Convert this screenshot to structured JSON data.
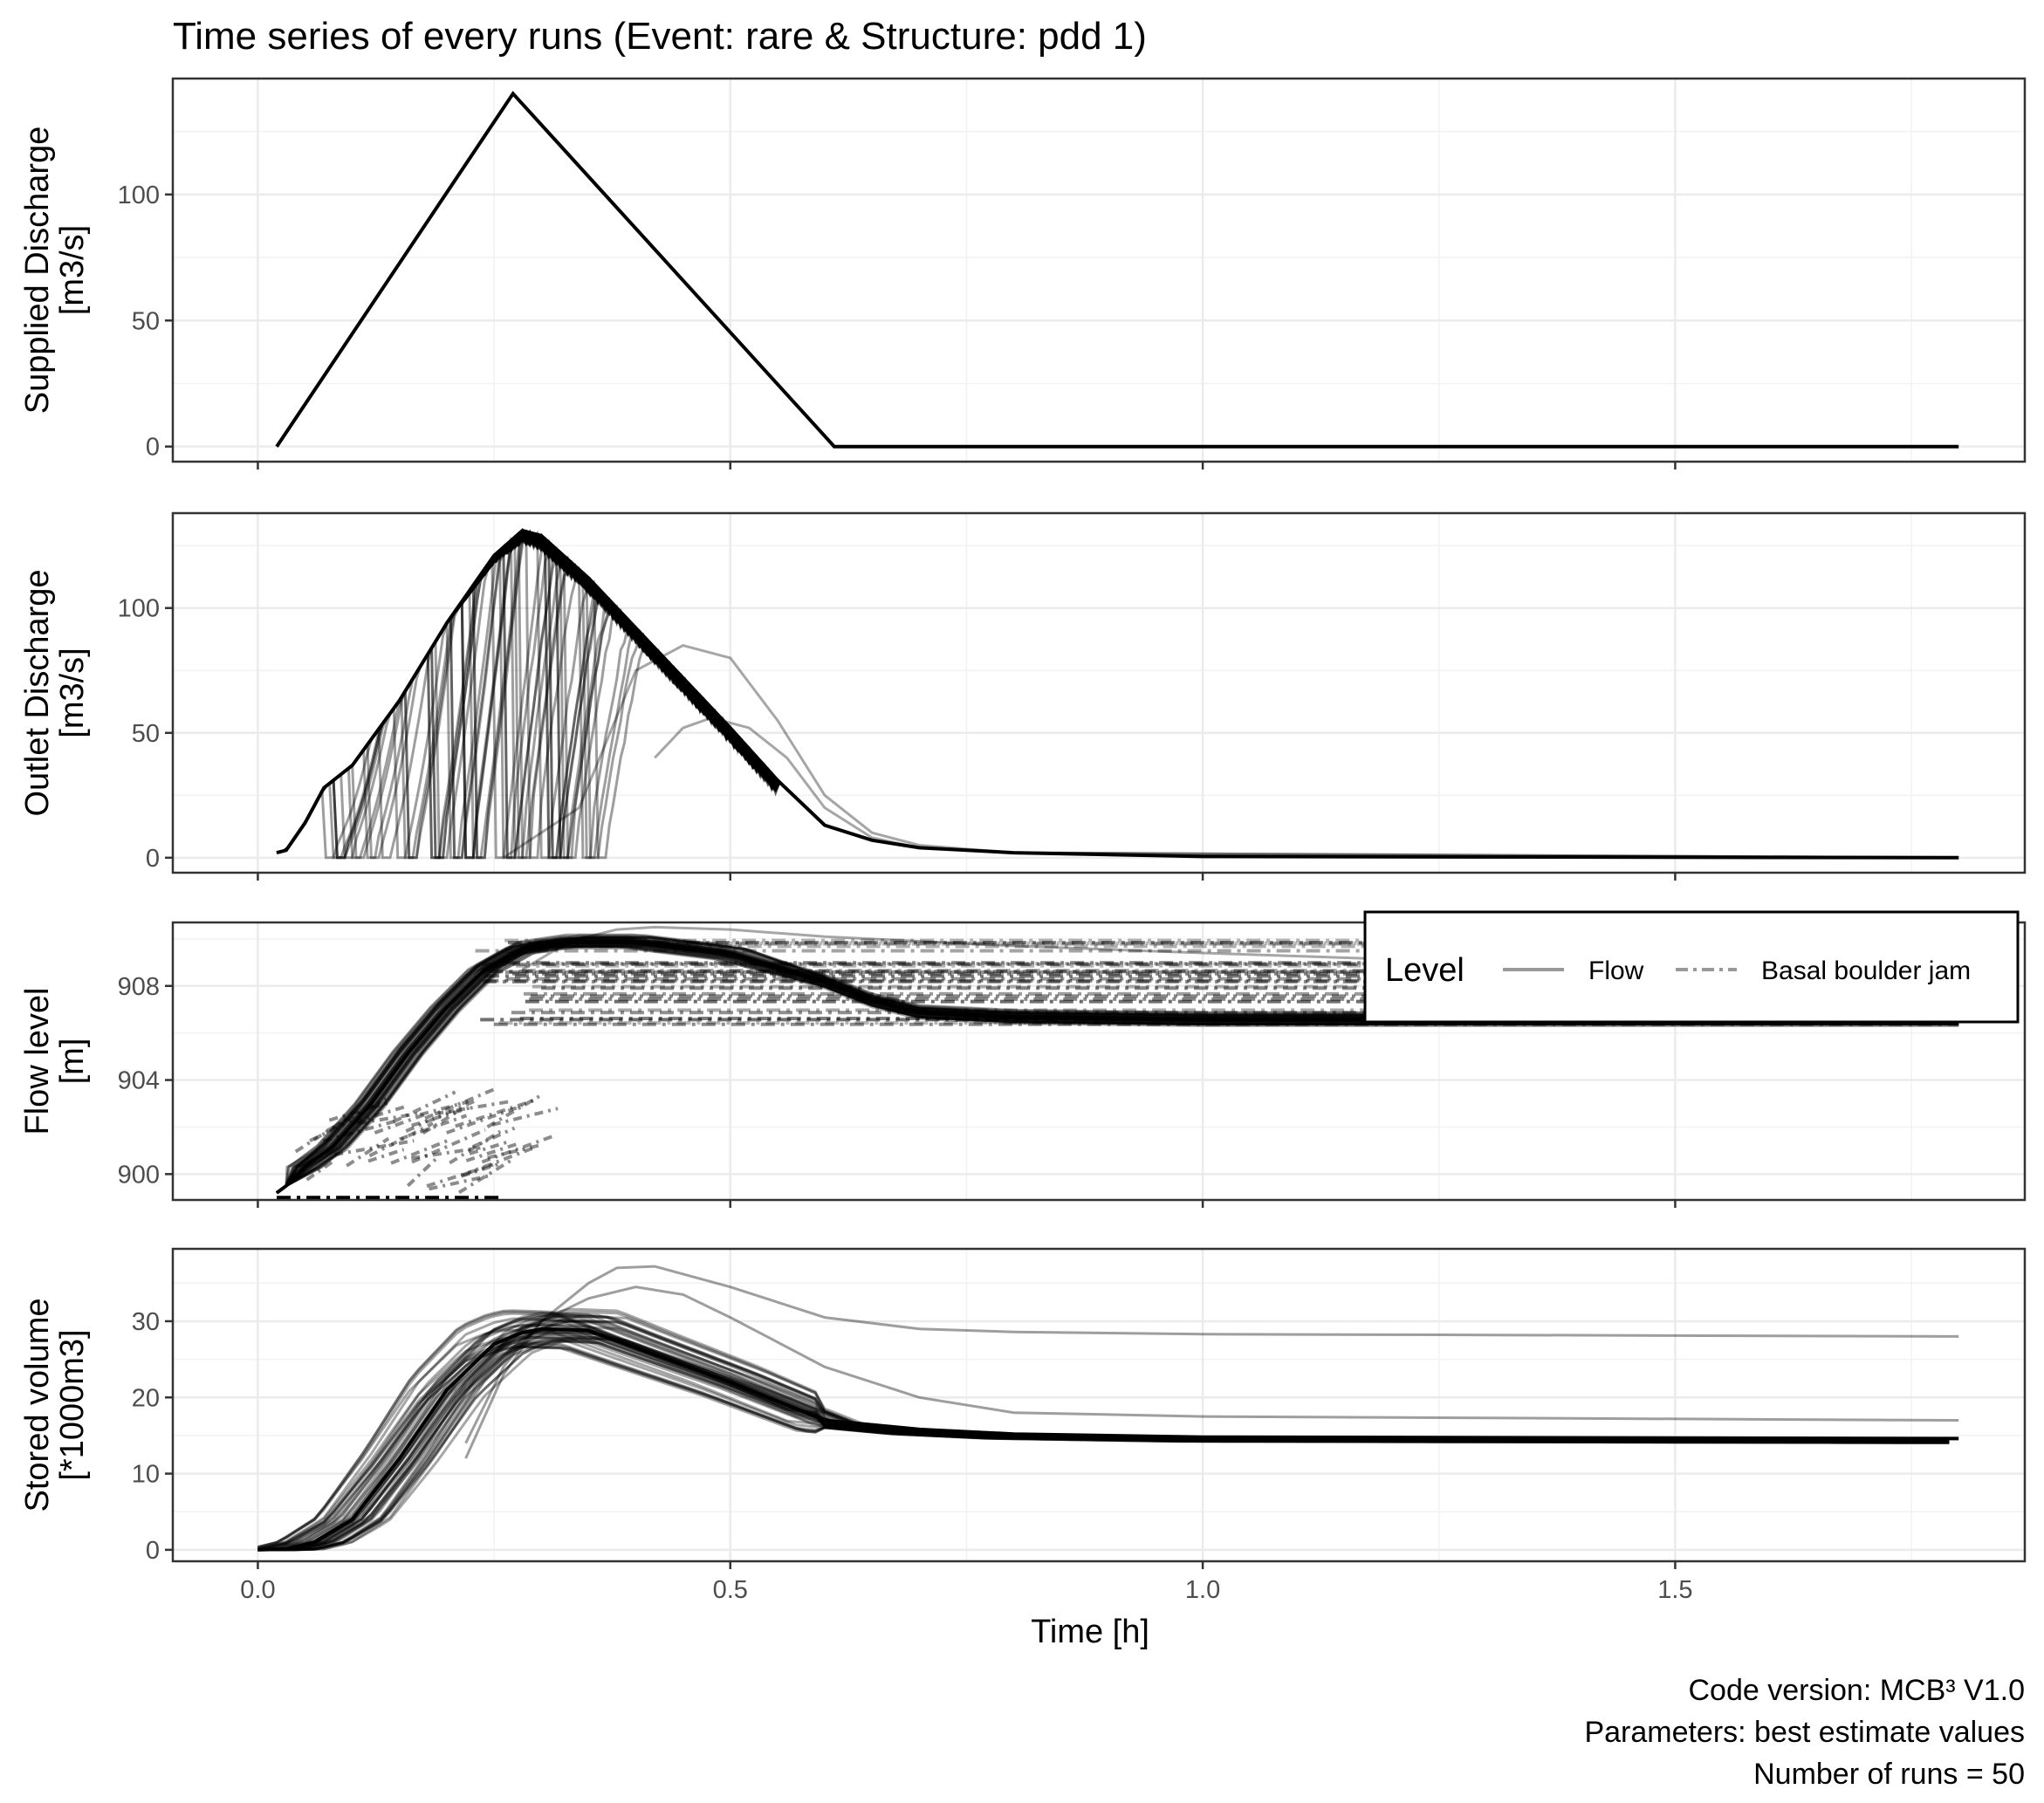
{
  "chart_data": {
    "type": "line",
    "title": "Time series of every runs (Event: rare & Structure: pdd 1)",
    "xlabel": "Time [h]",
    "xlim": [
      -0.09,
      1.87
    ],
    "x_ticks": [
      0.0,
      0.5,
      1.0,
      1.5
    ],
    "x_tick_labels": [
      "0.0",
      "0.5",
      "1.0",
      "1.5"
    ],
    "grid": true,
    "legend": {
      "title": "Level",
      "position": "top-right",
      "entries": [
        {
          "label": "Flow",
          "linetype": "solid"
        },
        {
          "label": "Basal boulder jam",
          "linetype": "dashdot"
        }
      ]
    },
    "caption_lines": [
      "Code version: MCB³ V1.0",
      "Parameters:  best estimate values",
      "Number of runs = 50"
    ],
    "n_runs": 50,
    "panels": [
      {
        "id": "supplied",
        "ylabel_lines": [
          "Supplied Discharge",
          "[m3/s]"
        ],
        "ylim": [
          -6,
          146
        ],
        "y_ticks": [
          0,
          50,
          100
        ],
        "y_tick_labels": [
          "0",
          "50",
          "100"
        ],
        "series": [
          {
            "x": [
              0.02,
              0.27,
              0.61,
              1.8
            ],
            "y": [
              0,
              140,
              0,
              0
            ],
            "linetype": "solid"
          }
        ]
      },
      {
        "id": "outlet",
        "ylabel_lines": [
          "Outlet Discharge",
          "[m3/s]"
        ],
        "ylim": [
          -6,
          138
        ],
        "y_ticks": [
          0,
          50,
          100
        ],
        "y_tick_labels": [
          "0",
          "50",
          "100"
        ],
        "envelope": {
          "x": [
            0.02,
            0.03,
            0.05,
            0.07,
            0.1,
            0.15,
            0.2,
            0.25,
            0.28,
            0.3,
            0.35,
            0.4,
            0.45,
            0.5,
            0.55,
            0.6,
            0.65,
            0.7,
            0.8,
            1.0,
            1.8
          ],
          "y": [
            2,
            3,
            14,
            28,
            37,
            63,
            94,
            121,
            131,
            129,
            112,
            92,
            72,
            52,
            31,
            13,
            7,
            4,
            2,
            0.5,
            0
          ]
        },
        "dip_runs_count": 50,
        "late_runs": [
          {
            "x": [
              0.26,
              0.34,
              0.4,
              0.45,
              0.5,
              0.55,
              0.6,
              0.65,
              0.7,
              0.8,
              1.8
            ],
            "y": [
              0,
              20,
              75,
              85,
              80,
              55,
              25,
              10,
              5,
              2,
              0
            ]
          },
          {
            "x": [
              0.42,
              0.45,
              0.48,
              0.52,
              0.56,
              0.6,
              0.65,
              0.7,
              0.8,
              1.8
            ],
            "y": [
              40,
              52,
              56,
              52,
              40,
              20,
              8,
              4,
              2,
              0
            ]
          }
        ]
      },
      {
        "id": "flowlevel",
        "ylabel_lines": [
          "Flow level",
          "[m]"
        ],
        "ylim": [
          898.9,
          910.7
        ],
        "y_ticks": [
          900,
          904,
          908
        ],
        "y_tick_labels": [
          "900",
          "904",
          "908"
        ],
        "flow_envelope": {
          "x": [
            0.02,
            0.03,
            0.05,
            0.08,
            0.12,
            0.16,
            0.2,
            0.24,
            0.28,
            0.33,
            0.4,
            0.5,
            0.6,
            0.65,
            0.7,
            0.8,
            1.0,
            1.8
          ],
          "y": [
            899.2,
            899.5,
            900.3,
            901.2,
            903.0,
            905.2,
            907.1,
            908.7,
            909.6,
            909.9,
            909.9,
            909.4,
            908.2,
            907.4,
            906.9,
            906.7,
            906.6,
            906.6
          ]
        },
        "flow_outlier": {
          "x": [
            0.28,
            0.33,
            0.38,
            0.42,
            0.5,
            0.6,
            0.8,
            1.0,
            1.3,
            1.5
          ],
          "y": [
            908.7,
            909.9,
            910.4,
            910.5,
            910.4,
            910.1,
            909.7,
            909.4,
            909.0,
            908.6
          ]
        },
        "jam_top": 910.3,
        "jam_bottom": 906.3
      },
      {
        "id": "stored",
        "ylabel_lines": [
          "Stored volume",
          "[*1000m3]"
        ],
        "ylim": [
          -1.5,
          39.5
        ],
        "y_ticks": [
          0,
          10,
          20,
          30
        ],
        "y_tick_labels": [
          "0",
          "10",
          "20",
          "30"
        ],
        "envelope": {
          "x": [
            0.0,
            0.03,
            0.06,
            0.1,
            0.15,
            0.2,
            0.25,
            0.28,
            0.3,
            0.35,
            0.4,
            0.5,
            0.6,
            0.7,
            0.8,
            1.0,
            1.8
          ],
          "y": [
            0,
            0.1,
            1.0,
            4.0,
            12.0,
            21.0,
            27.0,
            28.5,
            29.0,
            28.8,
            26.5,
            22.0,
            17.0,
            15.8,
            15.2,
            14.8,
            14.6
          ]
        },
        "upper_runs": [
          {
            "x": [
              0.22,
              0.26,
              0.3,
              0.35,
              0.38,
              0.42,
              0.5,
              0.6,
              0.7,
              0.8,
              1.0,
              1.3,
              1.8
            ],
            "y": [
              14,
              24,
              30,
              35,
              37,
              37.2,
              34.5,
              30.5,
              29.0,
              28.6,
              28.3,
              28.2,
              28.0
            ]
          },
          {
            "x": [
              0.22,
              0.26,
              0.3,
              0.35,
              0.4,
              0.45,
              0.5,
              0.6,
              0.7,
              0.8,
              1.0,
              1.3,
              1.8
            ],
            "y": [
              12,
              23,
              30,
              33,
              34.5,
              33.5,
              30.5,
              24.0,
              20.0,
              18.0,
              17.5,
              17.3,
              17.0
            ]
          }
        ]
      }
    ]
  }
}
